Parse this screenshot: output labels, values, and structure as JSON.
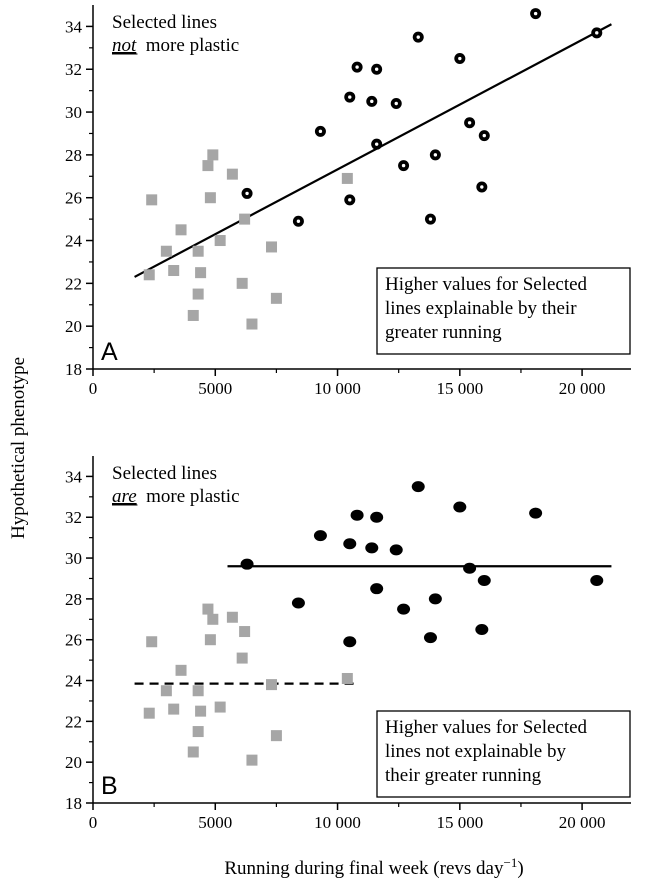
{
  "figure": {
    "ylabel": "Hypothetical phenotype",
    "xlabel": "Running during final week (revs day",
    "xlabel_sup": "−1",
    "xlabel_close": ")"
  },
  "colors": {
    "selected": "#000000",
    "control": "#a6a6a6",
    "line": "#000000"
  },
  "chart_data": [
    {
      "type": "scatter",
      "panel": "A",
      "xlim": [
        0,
        22000
      ],
      "ylim": [
        18,
        35
      ],
      "x_ticks": [
        0,
        5000,
        10000,
        15000,
        20000
      ],
      "x_tick_labels": [
        "0",
        "5000",
        "10 000",
        "15 000",
        "20 000"
      ],
      "y_ticks": [
        18,
        20,
        22,
        24,
        26,
        28,
        30,
        32,
        34
      ],
      "y_tick_labels": [
        "18",
        "20",
        "22",
        "24",
        "26",
        "28",
        "30",
        "32",
        "34"
      ],
      "annotation_top": [
        "Selected lines",
        "not",
        "more plastic"
      ],
      "annotation_box": [
        "Higher values for Selected",
        "lines explainable by their",
        "greater running"
      ],
      "series": [
        {
          "marker": "ring-circle",
          "points": [
            [
              6300,
              26.2
            ],
            [
              8400,
              24.9
            ],
            [
              9300,
              29.1
            ],
            [
              10500,
              25.9
            ],
            [
              10500,
              30.7
            ],
            [
              10800,
              32.1
            ],
            [
              11400,
              30.5
            ],
            [
              11600,
              28.5
            ],
            [
              11600,
              32.0
            ],
            [
              12400,
              30.4
            ],
            [
              12700,
              27.5
            ],
            [
              13300,
              33.5
            ],
            [
              13800,
              25.0
            ],
            [
              14000,
              28.0
            ],
            [
              15000,
              32.5
            ],
            [
              15400,
              29.5
            ],
            [
              15900,
              26.5
            ],
            [
              16000,
              28.9
            ],
            [
              18100,
              34.6
            ],
            [
              20600,
              33.7
            ]
          ]
        },
        {
          "marker": "square",
          "points": [
            [
              2300,
              22.4
            ],
            [
              2400,
              25.9
            ],
            [
              3000,
              23.5
            ],
            [
              3300,
              22.6
            ],
            [
              3600,
              24.5
            ],
            [
              4100,
              20.5
            ],
            [
              4300,
              21.5
            ],
            [
              4300,
              23.5
            ],
            [
              4400,
              22.5
            ],
            [
              4700,
              27.5
            ],
            [
              4800,
              26.0
            ],
            [
              4900,
              28.0
            ],
            [
              5200,
              24.0
            ],
            [
              5700,
              27.1
            ],
            [
              6100,
              22.0
            ],
            [
              6200,
              25.0
            ],
            [
              6500,
              20.1
            ],
            [
              7300,
              23.7
            ],
            [
              7500,
              21.3
            ],
            [
              10400,
              26.9
            ]
          ]
        }
      ],
      "fit_lines": [
        {
          "style": "solid",
          "x": [
            1700,
            21200
          ],
          "y": [
            22.3,
            34.1
          ]
        }
      ]
    },
    {
      "type": "scatter",
      "panel": "B",
      "xlim": [
        0,
        22000
      ],
      "ylim": [
        18,
        35
      ],
      "x_ticks": [
        0,
        5000,
        10000,
        15000,
        20000
      ],
      "x_tick_labels": [
        "0",
        "5000",
        "10 000",
        "15 000",
        "20 000"
      ],
      "y_ticks": [
        18,
        20,
        22,
        24,
        26,
        28,
        30,
        32,
        34
      ],
      "y_tick_labels": [
        "18",
        "20",
        "22",
        "24",
        "26",
        "28",
        "30",
        "32",
        "34"
      ],
      "annotation_top": [
        "Selected lines",
        "are",
        "more plastic"
      ],
      "annotation_box": [
        "Higher values for Selected",
        "lines not explainable by",
        "their greater running"
      ],
      "series": [
        {
          "marker": "filled-circle",
          "points": [
            [
              6300,
              29.7
            ],
            [
              8400,
              27.8
            ],
            [
              9300,
              31.1
            ],
            [
              10500,
              25.9
            ],
            [
              10500,
              30.7
            ],
            [
              10800,
              32.1
            ],
            [
              11400,
              30.5
            ],
            [
              11600,
              28.5
            ],
            [
              11600,
              32.0
            ],
            [
              12400,
              30.4
            ],
            [
              12700,
              27.5
            ],
            [
              13300,
              33.5
            ],
            [
              13800,
              26.1
            ],
            [
              14000,
              28.0
            ],
            [
              15000,
              32.5
            ],
            [
              15400,
              29.5
            ],
            [
              15900,
              26.5
            ],
            [
              16000,
              28.9
            ],
            [
              18100,
              32.2
            ],
            [
              20600,
              28.9
            ]
          ]
        },
        {
          "marker": "square",
          "points": [
            [
              2300,
              22.4
            ],
            [
              2400,
              25.9
            ],
            [
              3000,
              23.5
            ],
            [
              3300,
              22.6
            ],
            [
              3600,
              24.5
            ],
            [
              4100,
              20.5
            ],
            [
              4300,
              21.5
            ],
            [
              4300,
              23.5
            ],
            [
              4400,
              22.5
            ],
            [
              4700,
              27.5
            ],
            [
              4800,
              26.0
            ],
            [
              4900,
              27.0
            ],
            [
              5200,
              22.7
            ],
            [
              5700,
              27.1
            ],
            [
              6100,
              25.1
            ],
            [
              6200,
              26.4
            ],
            [
              6500,
              20.1
            ],
            [
              7300,
              23.8
            ],
            [
              7500,
              21.3
            ],
            [
              10400,
              24.1
            ]
          ]
        }
      ],
      "fit_lines": [
        {
          "style": "solid",
          "x": [
            5500,
            21200
          ],
          "y": [
            29.6,
            29.6
          ]
        },
        {
          "style": "dashed",
          "x": [
            1700,
            10800
          ],
          "y": [
            23.85,
            23.85
          ]
        }
      ]
    }
  ]
}
